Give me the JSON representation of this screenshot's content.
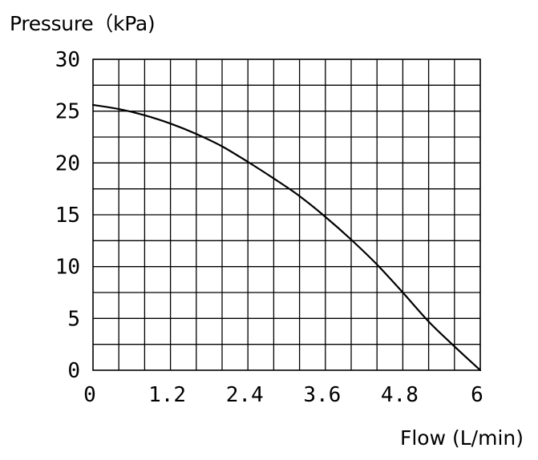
{
  "chart_data": {
    "type": "line",
    "title": "",
    "xlabel": "Flow (L/min)",
    "ylabel": "Pressure（kPa)",
    "xlim": [
      0,
      6
    ],
    "ylim": [
      0,
      30
    ],
    "x_ticks": [
      0,
      1.2,
      2.4,
      3.6,
      4.8,
      6
    ],
    "x_tick_labels": [
      "0",
      "1.2",
      "2.4",
      "3.6",
      "4.8",
      "6"
    ],
    "y_ticks": [
      0,
      5,
      10,
      15,
      20,
      25,
      30
    ],
    "y_tick_labels": [
      "0",
      "5",
      "10",
      "15",
      "20",
      "25",
      "30"
    ],
    "grid": true,
    "grid_x_step": 0.4,
    "grid_y_step": 2.5,
    "line_color": "#000000",
    "series": [
      {
        "x": [
          0,
          0.4,
          0.8,
          1.2,
          1.6,
          2.0,
          2.4,
          2.8,
          3.2,
          3.6,
          4.0,
          4.4,
          4.8,
          5.2,
          5.6,
          6.0
        ],
        "y": [
          25.6,
          25.2,
          24.6,
          23.8,
          22.8,
          21.6,
          20.1,
          18.5,
          16.8,
          14.8,
          12.6,
          10.2,
          7.5,
          4.7,
          2.3,
          0
        ]
      }
    ]
  }
}
